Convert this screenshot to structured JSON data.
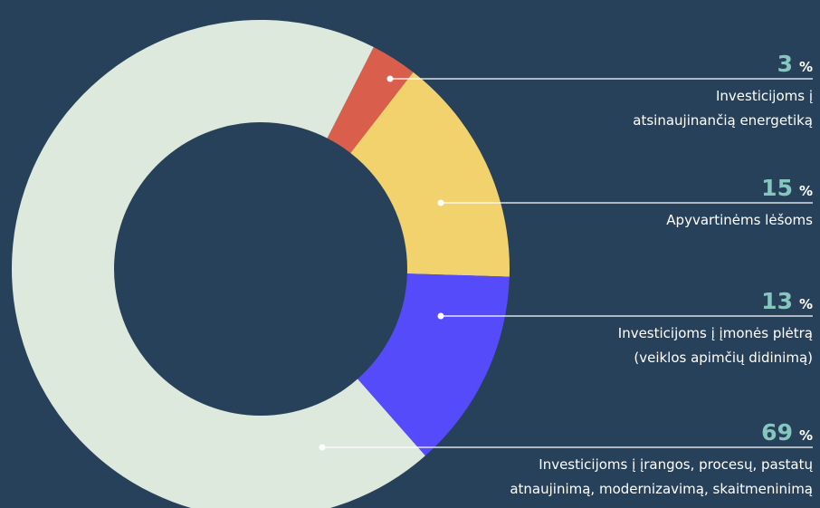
{
  "chart_data": {
    "type": "donut",
    "unit": "%",
    "categories": [
      [
        "Investicijoms į",
        "atsinaujinančią energetiką"
      ],
      [
        "Apyvartinėms lėšoms"
      ],
      [
        "Investicijoms į įmonės plėtrą",
        "(veiklos apimčių didinimą)"
      ],
      [
        "Investicijoms į įrangos, procesų, pastatų",
        "atnaujinimą, modernizavimą, skaitmeninimą"
      ]
    ],
    "values": [
      3,
      15,
      13,
      69
    ],
    "colors": [
      "#d95e4b",
      "#f2d26d",
      "#564bfa",
      "#dce9dc"
    ]
  }
}
